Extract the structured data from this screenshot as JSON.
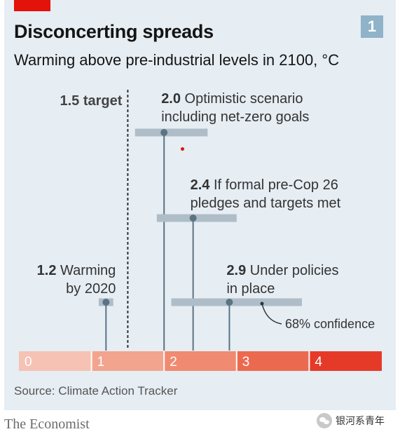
{
  "chart_data": {
    "type": "range",
    "title": "Disconcerting spreads",
    "subtitle": "Warming above pre-industrial levels in 2100, °C",
    "chart_number": "1",
    "axis": {
      "min": 0,
      "max": 5,
      "ticks": [
        "0",
        "1",
        "2",
        "3",
        "4"
      ],
      "band_colors": [
        "#f6c2b3",
        "#f3a48f",
        "#f08a70",
        "#eb6a4f",
        "#e53a28"
      ]
    },
    "target": {
      "value": 1.5,
      "label": "1.5 target"
    },
    "scenarios": [
      {
        "value": 2.0,
        "value_label": "2.0",
        "label": [
          "Optimistic scenario",
          "including net-zero goals"
        ],
        "low": 1.6,
        "high": 2.6
      },
      {
        "value": 2.4,
        "value_label": "2.4",
        "label": [
          "If formal pre-Cop 26",
          "pledges and targets met"
        ],
        "low": 1.9,
        "high": 3.0
      },
      {
        "value": 1.2,
        "value_label": "1.2",
        "label": [
          "Warming",
          "by 2020"
        ],
        "low": 1.1,
        "high": 1.3
      },
      {
        "value": 2.9,
        "value_label": "2.9",
        "label": [
          "Under policies",
          "in place"
        ],
        "low": 2.1,
        "high": 3.9
      }
    ],
    "annotation": "68% confidence",
    "source": "Source: Climate Action Tracker"
  },
  "publisher": "The Economist",
  "watermark": "银河系青年",
  "colors": {
    "background": "#e6edf3",
    "range_bar": "#aebdc8",
    "marker": "#5b7383",
    "accent": "#e3120b"
  }
}
